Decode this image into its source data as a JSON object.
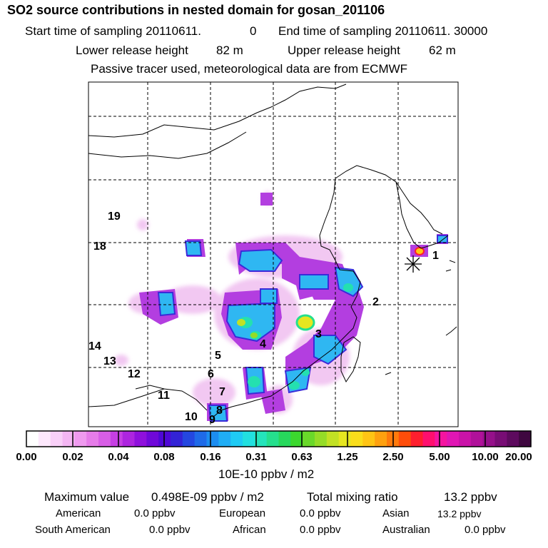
{
  "header": {
    "title": "SO2 source contributions in nested domain for gosan_201106",
    "start_label": "Start time of sampling 20110611.",
    "start_hour": "0",
    "end_label": "End time of sampling 20110611. 30000",
    "lower_label": "Lower release height",
    "lower_value": "82 m",
    "upper_label": "Upper release height",
    "upper_value": "62 m",
    "tracer_note": "Passive tracer used, meteorological data are from ECMWF"
  },
  "regions": [
    "1",
    "2",
    "3",
    "4",
    "5",
    "6",
    "7",
    "8",
    "9",
    "10",
    "11",
    "12",
    "13",
    "14",
    "18",
    "19"
  ],
  "colorbar": {
    "labels": [
      "0.00",
      "0.02",
      "0.04",
      "0.08",
      "0.16",
      "0.31",
      "0.63",
      "1.25",
      "2.50",
      "5.00",
      "10.00",
      "20.00"
    ],
    "units": "10E-10 ppbv / m2",
    "colors": [
      "#ffffff",
      "#fde8fc",
      "#f9d0f8",
      "#f4b6f3",
      "#ef9aef",
      "#e67ce9",
      "#d85ee6",
      "#c63fe3",
      "#ad25df",
      "#8f10dc",
      "#6f08d9",
      "#4f07d6",
      "#3323d6",
      "#2447e0",
      "#1f6ae8",
      "#1c8df0",
      "#20adf5",
      "#1fcbf4",
      "#22e0e0",
      "#24e4bb",
      "#25df8d",
      "#27d85c",
      "#3cd82e",
      "#6ad82a",
      "#95dc27",
      "#c2e124",
      "#e6e620",
      "#f9dd1b",
      "#ffc414",
      "#ffa10f",
      "#ff7a0c",
      "#ff4d0a",
      "#ff1f2e",
      "#ff0f6e",
      "#f414a0",
      "#e016b4",
      "#c913a8",
      "#b0119a",
      "#95108a",
      "#780d75",
      "#5d0a5e",
      "#3f0740"
    ]
  },
  "stats": {
    "max_label": "Maximum value",
    "max_value": "0.498E-09 ppbv / m2",
    "total_label": "Total mixing ratio",
    "total_value": "13.2 ppbv",
    "american_label": "American",
    "american_value": "0.0 ppbv",
    "european_label": "European",
    "european_value": "0.0 ppbv",
    "asian_label": "Asian",
    "asian_value": "13.2 ppbv",
    "south_american_label": "South American",
    "south_american_value": "0.0 ppbv",
    "african_label": "African",
    "african_value": "0.0 ppbv",
    "australian_label": "Australian",
    "australian_value": "0.0 ppbv"
  }
}
